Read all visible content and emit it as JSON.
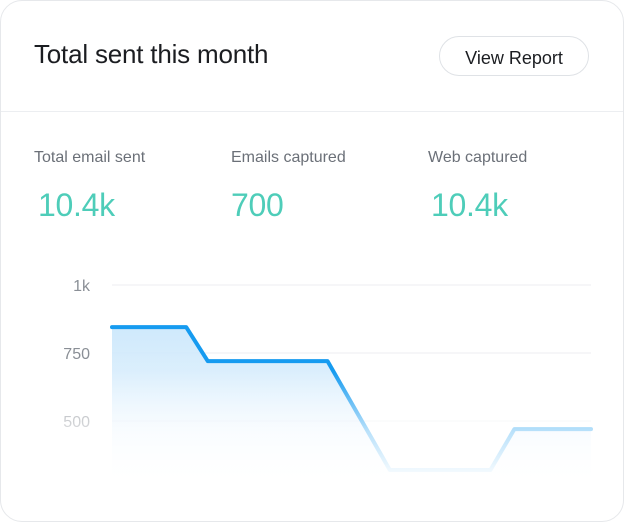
{
  "header": {
    "title": "Total sent this month",
    "view_report_label": "View Report"
  },
  "stats": [
    {
      "label": "Total email sent",
      "value": "10.4k"
    },
    {
      "label": "Emails captured",
      "value": "700"
    },
    {
      "label": "Web captured",
      "value": "10.4k"
    }
  ],
  "colors": {
    "accent_value": "#4ecdb9",
    "line": "#169bf0",
    "area": "#cfe9fc"
  },
  "chart_data": {
    "type": "area",
    "y_ticks": [
      {
        "value": 1000,
        "label": "1k"
      },
      {
        "value": 750,
        "label": "750"
      },
      {
        "value": 500,
        "label": "500"
      }
    ],
    "ylim": [
      0,
      1000
    ],
    "grid": true,
    "series": [
      {
        "points": [
          {
            "x": 0,
            "y": 845
          },
          {
            "x": 0.155,
            "y": 845
          },
          {
            "x": 0.2,
            "y": 720
          },
          {
            "x": 0.45,
            "y": 720
          },
          {
            "x": 0.58,
            "y": 320
          },
          {
            "x": 0.79,
            "y": 320
          },
          {
            "x": 0.84,
            "y": 470
          },
          {
            "x": 1,
            "y": 470
          }
        ]
      }
    ]
  }
}
